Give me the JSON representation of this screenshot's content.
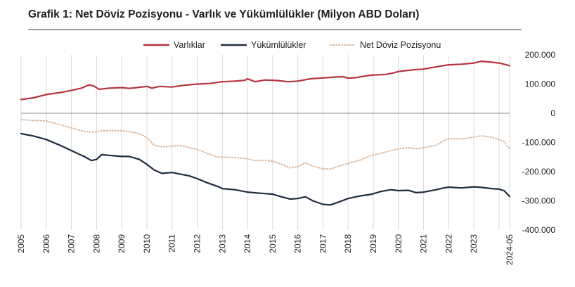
{
  "chart_data": {
    "type": "line",
    "title": "Grafik 1: Net Döviz Pozisyonu - Varlık ve Yükümlülükler (Milyon ABD Doları)",
    "xlabel": "",
    "ylabel": "",
    "x_ticks": [
      "2005",
      "2006",
      "2007",
      "2008",
      "2009",
      "2010",
      "2011",
      "2012",
      "2013",
      "2014",
      "2015",
      "2016",
      "2017",
      "2018",
      "2019",
      "2020",
      "2021",
      "2022",
      "2023",
      "2024-05"
    ],
    "y_ticks": [
      "200.000",
      "100.000",
      "0",
      "-100.000",
      "-200.000",
      "-300.000",
      "-400.000"
    ],
    "y_tick_values": [
      200000,
      100000,
      0,
      -100000,
      -200000,
      -300000,
      -400000
    ],
    "ylim": [
      -400000,
      200000
    ],
    "xlim": [
      2005.0,
      2024.42
    ],
    "grid": "vertical",
    "legend_position": "top",
    "series": [
      {
        "name": "Varlıklar",
        "color": "#b4343f",
        "style": "solid",
        "points": [
          [
            2005.0,
            47000
          ],
          [
            2005.5,
            53000
          ],
          [
            2006.0,
            64000
          ],
          [
            2006.5,
            70000
          ],
          [
            2007.0,
            78000
          ],
          [
            2007.4,
            86000
          ],
          [
            2007.7,
            97000
          ],
          [
            2007.9,
            93000
          ],
          [
            2008.1,
            82000
          ],
          [
            2008.5,
            86000
          ],
          [
            2009.0,
            88000
          ],
          [
            2009.3,
            85000
          ],
          [
            2009.6,
            88000
          ],
          [
            2010.0,
            92000
          ],
          [
            2010.2,
            86000
          ],
          [
            2010.5,
            92000
          ],
          [
            2011.0,
            90000
          ],
          [
            2011.5,
            96000
          ],
          [
            2012.0,
            100000
          ],
          [
            2012.5,
            102000
          ],
          [
            2013.0,
            108000
          ],
          [
            2013.5,
            110000
          ],
          [
            2013.9,
            113000
          ],
          [
            2014.0,
            118000
          ],
          [
            2014.3,
            108000
          ],
          [
            2014.7,
            114000
          ],
          [
            2015.0,
            113000
          ],
          [
            2015.3,
            111000
          ],
          [
            2015.6,
            108000
          ],
          [
            2016.0,
            110000
          ],
          [
            2016.5,
            118000
          ],
          [
            2017.0,
            121000
          ],
          [
            2017.5,
            124000
          ],
          [
            2017.8,
            125000
          ],
          [
            2018.0,
            120000
          ],
          [
            2018.3,
            122000
          ],
          [
            2018.7,
            128000
          ],
          [
            2019.0,
            131000
          ],
          [
            2019.5,
            133000
          ],
          [
            2019.8,
            138000
          ],
          [
            2020.0,
            143000
          ],
          [
            2020.3,
            146000
          ],
          [
            2020.7,
            150000
          ],
          [
            2021.0,
            151000
          ],
          [
            2021.3,
            156000
          ],
          [
            2021.7,
            162000
          ],
          [
            2022.0,
            166000
          ],
          [
            2022.5,
            168000
          ],
          [
            2023.0,
            172000
          ],
          [
            2023.3,
            178000
          ],
          [
            2023.7,
            175000
          ],
          [
            2024.0,
            172000
          ],
          [
            2024.2,
            168000
          ],
          [
            2024.42,
            163000
          ]
        ]
      },
      {
        "name": "Yükümlülükler",
        "color": "#1f2d3f",
        "style": "solid",
        "points": [
          [
            2005.0,
            -70000
          ],
          [
            2005.5,
            -78000
          ],
          [
            2006.0,
            -90000
          ],
          [
            2006.5,
            -108000
          ],
          [
            2007.0,
            -128000
          ],
          [
            2007.5,
            -148000
          ],
          [
            2007.8,
            -162000
          ],
          [
            2008.0,
            -158000
          ],
          [
            2008.2,
            -142000
          ],
          [
            2008.6,
            -145000
          ],
          [
            2009.0,
            -148000
          ],
          [
            2009.3,
            -148000
          ],
          [
            2009.7,
            -158000
          ],
          [
            2010.0,
            -175000
          ],
          [
            2010.3,
            -195000
          ],
          [
            2010.6,
            -206000
          ],
          [
            2011.0,
            -203000
          ],
          [
            2011.3,
            -208000
          ],
          [
            2011.7,
            -215000
          ],
          [
            2012.0,
            -224000
          ],
          [
            2012.4,
            -238000
          ],
          [
            2012.8,
            -250000
          ],
          [
            2013.0,
            -258000
          ],
          [
            2013.5,
            -262000
          ],
          [
            2014.0,
            -270000
          ],
          [
            2014.5,
            -274000
          ],
          [
            2015.0,
            -277000
          ],
          [
            2015.3,
            -285000
          ],
          [
            2015.7,
            -294000
          ],
          [
            2016.0,
            -292000
          ],
          [
            2016.3,
            -286000
          ],
          [
            2016.6,
            -300000
          ],
          [
            2017.0,
            -312000
          ],
          [
            2017.3,
            -314000
          ],
          [
            2017.6,
            -305000
          ],
          [
            2018.0,
            -292000
          ],
          [
            2018.5,
            -283000
          ],
          [
            2018.9,
            -278000
          ],
          [
            2019.3,
            -268000
          ],
          [
            2019.7,
            -262000
          ],
          [
            2020.0,
            -265000
          ],
          [
            2020.4,
            -264000
          ],
          [
            2020.7,
            -272000
          ],
          [
            2021.0,
            -270000
          ],
          [
            2021.5,
            -262000
          ],
          [
            2021.8,
            -256000
          ],
          [
            2022.0,
            -253000
          ],
          [
            2022.5,
            -256000
          ],
          [
            2023.0,
            -252000
          ],
          [
            2023.3,
            -254000
          ],
          [
            2023.7,
            -258000
          ],
          [
            2024.0,
            -260000
          ],
          [
            2024.2,
            -265000
          ],
          [
            2024.42,
            -285000
          ]
        ]
      },
      {
        "name": "Net Döviz Pozisyonu",
        "color": "#d8b59a",
        "style": "dotted",
        "points": [
          [
            2005.0,
            -22000
          ],
          [
            2005.5,
            -25000
          ],
          [
            2006.0,
            -26000
          ],
          [
            2006.5,
            -38000
          ],
          [
            2007.0,
            -50000
          ],
          [
            2007.5,
            -62000
          ],
          [
            2007.9,
            -65000
          ],
          [
            2008.2,
            -60000
          ],
          [
            2008.6,
            -59000
          ],
          [
            2009.0,
            -60000
          ],
          [
            2009.3,
            -63000
          ],
          [
            2009.7,
            -70000
          ],
          [
            2010.0,
            -83000
          ],
          [
            2010.3,
            -110000
          ],
          [
            2010.6,
            -115000
          ],
          [
            2011.0,
            -113000
          ],
          [
            2011.3,
            -110000
          ],
          [
            2011.7,
            -118000
          ],
          [
            2012.0,
            -124000
          ],
          [
            2012.4,
            -137000
          ],
          [
            2012.8,
            -150000
          ],
          [
            2013.0,
            -150000
          ],
          [
            2013.5,
            -152000
          ],
          [
            2013.9,
            -155000
          ],
          [
            2014.3,
            -162000
          ],
          [
            2014.7,
            -161000
          ],
          [
            2015.0,
            -164000
          ],
          [
            2015.3,
            -173000
          ],
          [
            2015.7,
            -187000
          ],
          [
            2016.0,
            -183000
          ],
          [
            2016.3,
            -170000
          ],
          [
            2016.6,
            -181000
          ],
          [
            2017.0,
            -190000
          ],
          [
            2017.3,
            -191000
          ],
          [
            2017.6,
            -182000
          ],
          [
            2018.0,
            -172000
          ],
          [
            2018.5,
            -160000
          ],
          [
            2018.9,
            -145000
          ],
          [
            2019.3,
            -137000
          ],
          [
            2019.7,
            -128000
          ],
          [
            2020.0,
            -122000
          ],
          [
            2020.4,
            -118000
          ],
          [
            2020.7,
            -122000
          ],
          [
            2021.0,
            -118000
          ],
          [
            2021.5,
            -110000
          ],
          [
            2021.8,
            -94000
          ],
          [
            2022.0,
            -87000
          ],
          [
            2022.5,
            -88000
          ],
          [
            2023.0,
            -82000
          ],
          [
            2023.3,
            -77000
          ],
          [
            2023.7,
            -82000
          ],
          [
            2024.0,
            -90000
          ],
          [
            2024.2,
            -97000
          ],
          [
            2024.42,
            -122000
          ]
        ]
      }
    ]
  }
}
